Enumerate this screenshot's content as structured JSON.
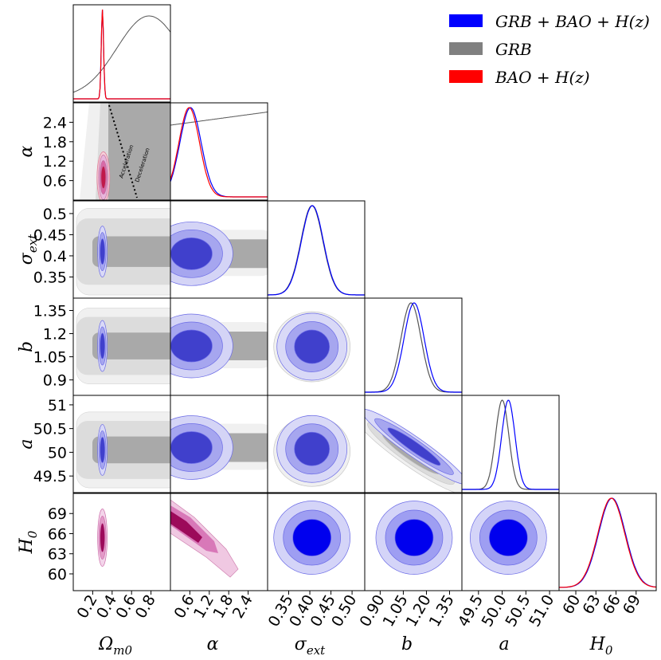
{
  "chart_data": {
    "type": "corner",
    "title": "",
    "parameters": [
      {
        "symbol": "Ωm0",
        "label": "Ω",
        "sub": "m0",
        "range": [
          0.0,
          1.0
        ],
        "ticks": [
          "0.2",
          "0.4",
          "0.6",
          "0.8"
        ],
        "tick_values": [
          0.2,
          0.4,
          0.6,
          0.8
        ]
      },
      {
        "symbol": "α",
        "label": "α",
        "sub": "",
        "range": [
          0.0,
          3.0
        ],
        "ticks": [
          "0.6",
          "1.2",
          "1.8",
          "2.4"
        ],
        "tick_values": [
          0.6,
          1.2,
          1.8,
          2.4
        ]
      },
      {
        "symbol": "σext",
        "label": "σ",
        "sub": "ext",
        "range": [
          0.3,
          0.53
        ],
        "ticks": [
          "0.35",
          "0.40",
          "0.45",
          "0.50"
        ],
        "tick_values": [
          0.35,
          0.4,
          0.45,
          0.5
        ]
      },
      {
        "symbol": "b",
        "label": "b",
        "sub": "",
        "range": [
          0.8,
          1.43
        ],
        "ticks": [
          "0.90",
          "1.05",
          "1.20",
          "1.35"
        ],
        "tick_values": [
          0.9,
          1.05,
          1.2,
          1.35
        ]
      },
      {
        "symbol": "a",
        "label": "a",
        "sub": "",
        "range": [
          49.15,
          51.2
        ],
        "ticks": [
          "49.5",
          "50.0",
          "50.5",
          "51.0"
        ],
        "tick_values": [
          49.5,
          50.0,
          50.5,
          51.0
        ]
      },
      {
        "symbol": "H0",
        "label": "H",
        "sub": "0",
        "range": [
          57.5,
          72.0
        ],
        "ticks": [
          "60",
          "63",
          "66",
          "69"
        ],
        "tick_values": [
          60,
          63,
          66,
          69
        ]
      }
    ],
    "y_ticks": {
      "1": [
        "0.6",
        "1.2",
        "1.8",
        "2.4"
      ],
      "2": [
        "0.35",
        "0.4",
        "0.45",
        "0.5"
      ],
      "3": [
        "0.9",
        "1.05",
        "1.2",
        "1.35"
      ],
      "4": [
        "49.5",
        "50",
        "50.5",
        "51"
      ],
      "5": [
        "60",
        "63",
        "66",
        "69"
      ]
    },
    "y_tick_values": {
      "1": [
        0.6,
        1.2,
        1.8,
        2.4
      ],
      "2": [
        0.35,
        0.4,
        0.45,
        0.5
      ],
      "3": [
        0.9,
        1.05,
        1.2,
        1.35
      ],
      "4": [
        49.5,
        50.0,
        50.5,
        51.0
      ],
      "5": [
        60,
        63,
        66,
        69
      ]
    },
    "series": [
      {
        "name": "GRB + BAO + H(z)",
        "color": "#0000ff",
        "means": [
          0.3,
          0.62,
          0.405,
          1.12,
          50.12,
          65.4
        ],
        "sigmas": [
          0.018,
          0.3,
          0.025,
          0.06,
          0.12,
          1.9
        ]
      },
      {
        "name": "GRB",
        "color": "#808080",
        "means": [
          null,
          null,
          0.405,
          1.11,
          50.0,
          null
        ],
        "sigmas": [
          null,
          null,
          0.025,
          0.06,
          0.12,
          null
        ]
      },
      {
        "name": "BAO + H(z)",
        "color": "#ff0000",
        "means": [
          0.3,
          0.6,
          null,
          null,
          null,
          65.3
        ],
        "sigmas": [
          0.018,
          0.3,
          null,
          null,
          null,
          1.95
        ]
      }
    ],
    "annotations": [
      "Acceleration",
      "Deceleration"
    ],
    "legend": [
      {
        "label": "GRB + BAO + H(z)",
        "color": "#0000ff"
      },
      {
        "label": "GRB",
        "color": "#808080"
      },
      {
        "label": "BAO + H(z)",
        "color": "#ff0000"
      }
    ],
    "legend_position": "top-right"
  }
}
